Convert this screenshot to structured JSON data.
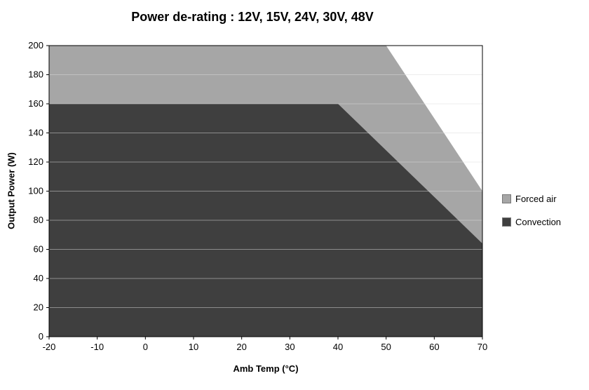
{
  "chart_data": {
    "type": "area",
    "title": "Power de-rating : 12V, 15V, 24V, 30V, 48V",
    "xlabel": "Amb Temp (°C)",
    "ylabel": "Output Power (W)",
    "xlim": [
      -20,
      70
    ],
    "ylim": [
      0,
      200
    ],
    "x_ticks": [
      -20,
      -10,
      0,
      10,
      20,
      30,
      40,
      50,
      60,
      70
    ],
    "y_ticks": [
      0,
      20,
      40,
      60,
      80,
      100,
      120,
      140,
      160,
      180,
      200
    ],
    "grid": "horizontal",
    "legend_position": "right",
    "series": [
      {
        "name": "Forced air",
        "color": "#a6a6a6",
        "points": [
          [
            -20,
            200
          ],
          [
            50,
            200
          ],
          [
            70,
            100
          ],
          [
            70,
            0
          ],
          [
            -20,
            0
          ]
        ]
      },
      {
        "name": "Convection",
        "color": "#3f3f3f",
        "points": [
          [
            -20,
            160
          ],
          [
            40,
            160
          ],
          [
            70,
            64
          ],
          [
            70,
            0
          ],
          [
            -20,
            0
          ]
        ]
      }
    ],
    "colors": {
      "plot_border": "#000000",
      "gridline": "#d9d9d9",
      "background": "#ffffff"
    }
  }
}
